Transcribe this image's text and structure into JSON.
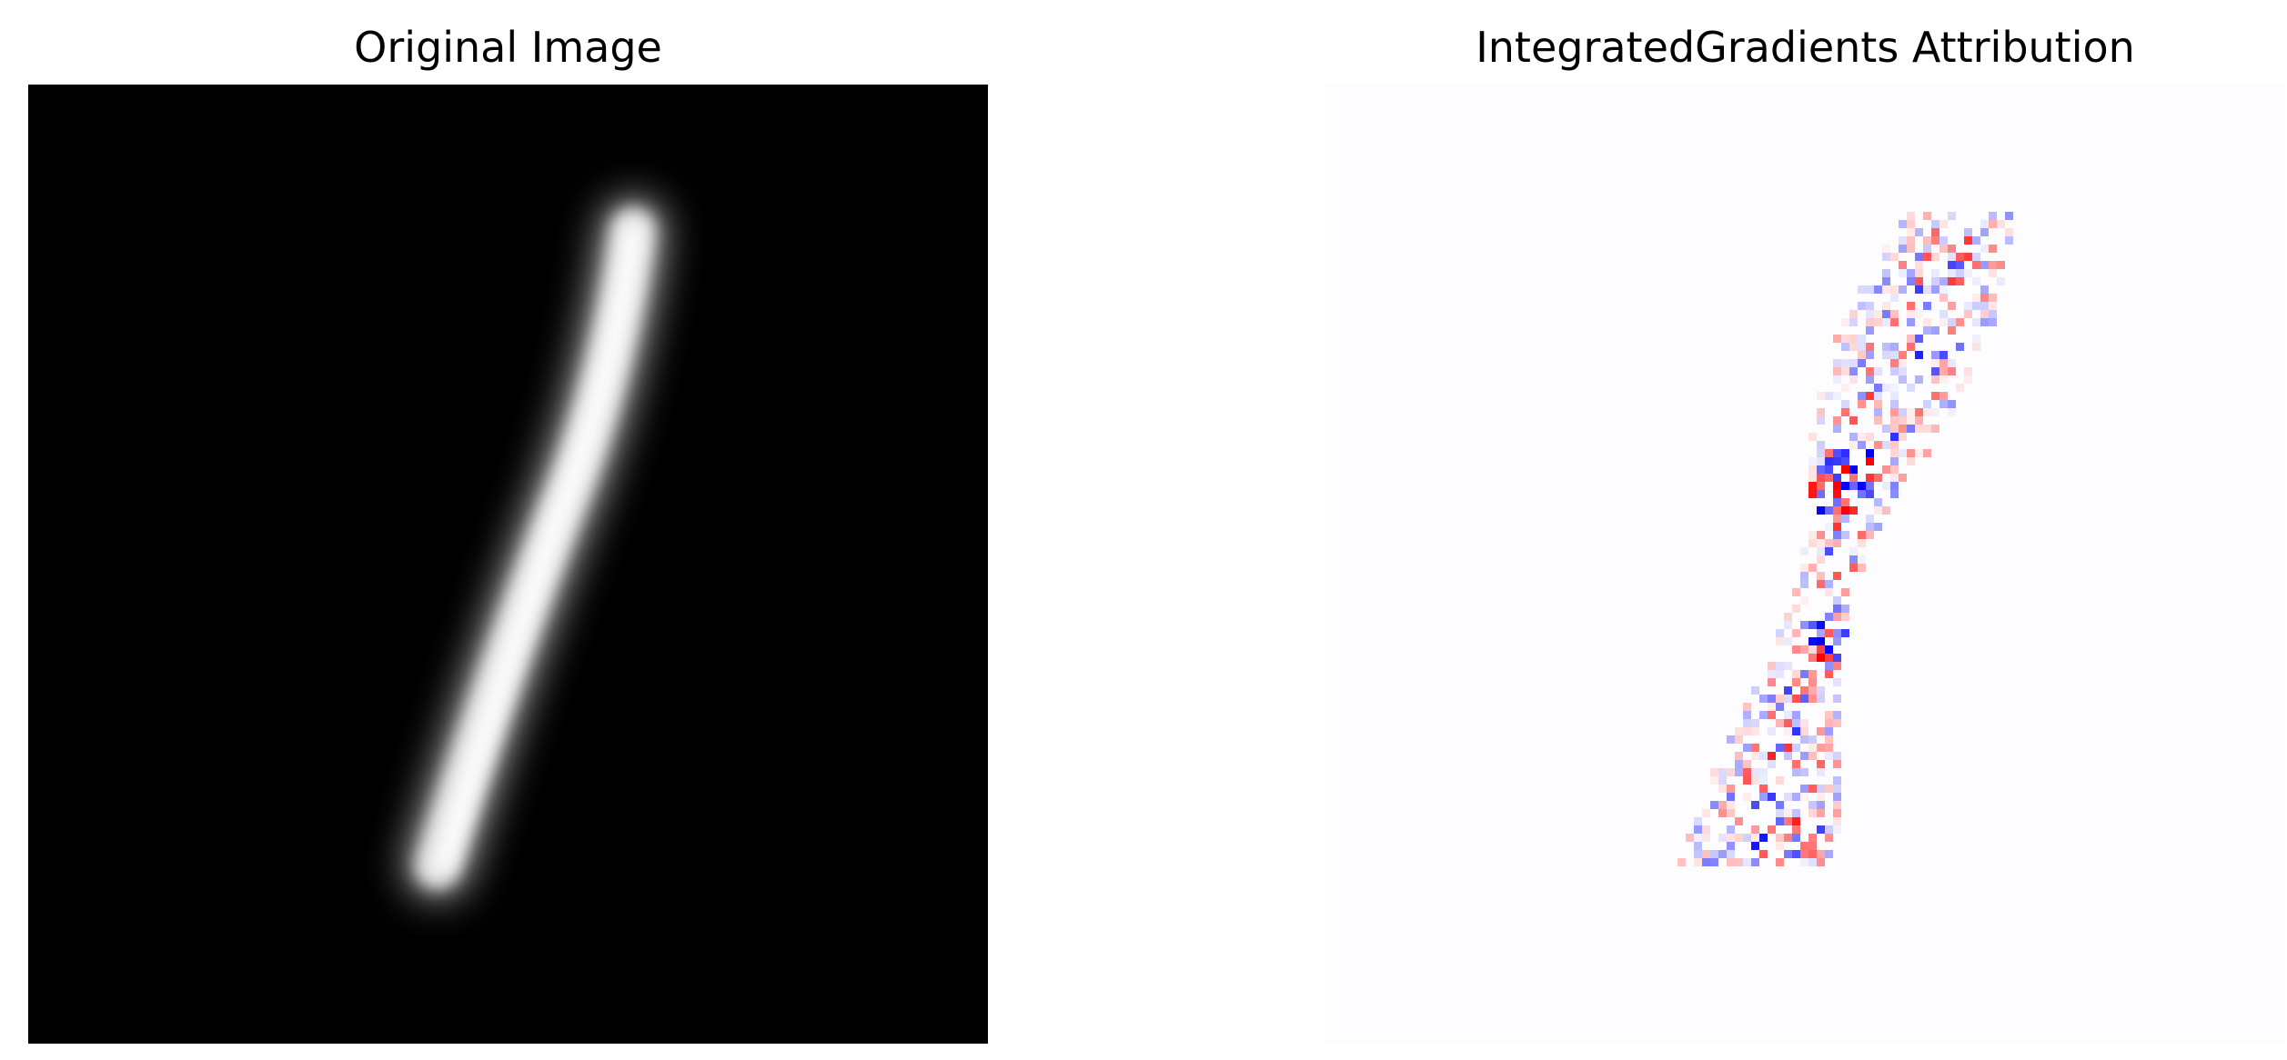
{
  "figure": {
    "panels": [
      {
        "title": "Original Image",
        "kind": "grayscale-image",
        "background": "#000000",
        "foreground": "#ffffff",
        "content": "handwritten digit stroke"
      },
      {
        "title": "IntegratedGradients Attribution",
        "kind": "diverging-heatmap",
        "colormap": "bwr",
        "negative_color": "#0000ff",
        "neutral_color": "#ffffff",
        "positive_color": "#ff0000",
        "background": "#fdfdff"
      }
    ]
  }
}
